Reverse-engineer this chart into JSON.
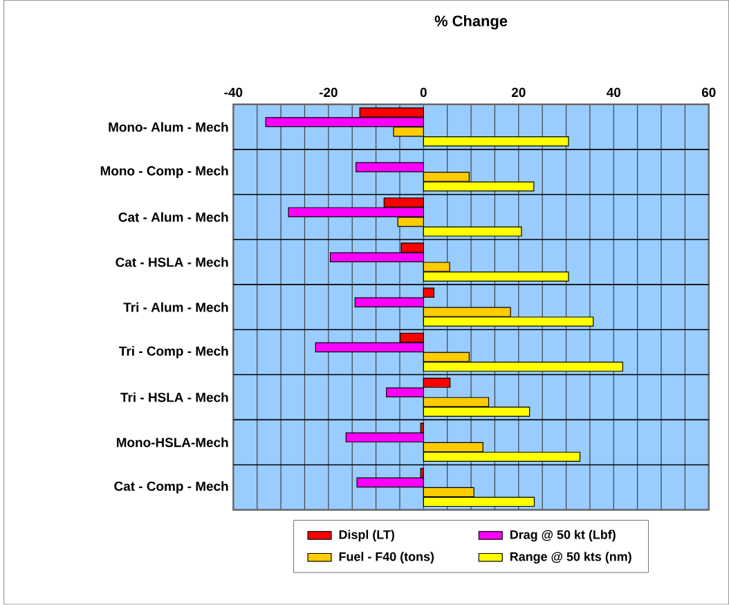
{
  "chart_data": {
    "type": "bar",
    "orientation": "horizontal",
    "title": "% Change",
    "categories": [
      "Mono- Alum - Mech",
      "Mono - Comp - Mech",
      "Cat - Alum - Mech",
      "Cat - HSLA - Mech",
      "Tri - Alum - Mech",
      "Tri - Comp - Mech",
      "Tri - HSLA - Mech",
      "Mono-HSLA-Mech",
      "Cat - Comp - Mech"
    ],
    "series": [
      {
        "name": "Displ (LT)",
        "color": "#ff0000",
        "values": [
          -13.4,
          null,
          -8.3,
          -4.7,
          2.2,
          -4.9,
          5.6,
          -0.6,
          -0.6
        ]
      },
      {
        "name": "Drag @ 50 kt (Lbf)",
        "color": "#ff00ff",
        "values": [
          -33.2,
          -14.2,
          -28.4,
          -19.6,
          -14.4,
          -22.7,
          -7.8,
          -16.3,
          -14.0
        ]
      },
      {
        "name": "Fuel - F40 (tons)",
        "color": "#ffcc00",
        "values": [
          -6.3,
          9.6,
          -5.4,
          5.5,
          18.3,
          9.6,
          13.7,
          12.5,
          10.6
        ]
      },
      {
        "name": "Range @ 50 kts (nm)",
        "color": "#ffff00",
        "values": [
          30.5,
          23.2,
          20.6,
          30.5,
          35.7,
          41.9,
          22.3,
          32.9,
          23.3
        ]
      }
    ],
    "xlim": [
      -40,
      60
    ],
    "xticks": [
      -40,
      {
        "value": -35,
        "label": null
      },
      {
        "value": -30,
        "label": null
      },
      {
        "value": -25,
        "label": null
      },
      -20,
      {
        "value": -15,
        "label": null
      },
      {
        "value": -10,
        "label": null
      },
      {
        "value": -5,
        "label": null
      },
      0,
      {
        "value": 5,
        "label": null
      },
      {
        "value": 10,
        "label": null
      },
      {
        "value": 15,
        "label": null
      },
      20,
      {
        "value": 25,
        "label": null
      },
      {
        "value": 30,
        "label": null
      },
      {
        "value": 35,
        "label": null
      },
      40,
      {
        "value": 45,
        "label": null
      },
      {
        "value": 50,
        "label": null
      },
      {
        "value": 55,
        "label": null
      },
      60
    ],
    "grid": true,
    "legend": "bottom"
  }
}
